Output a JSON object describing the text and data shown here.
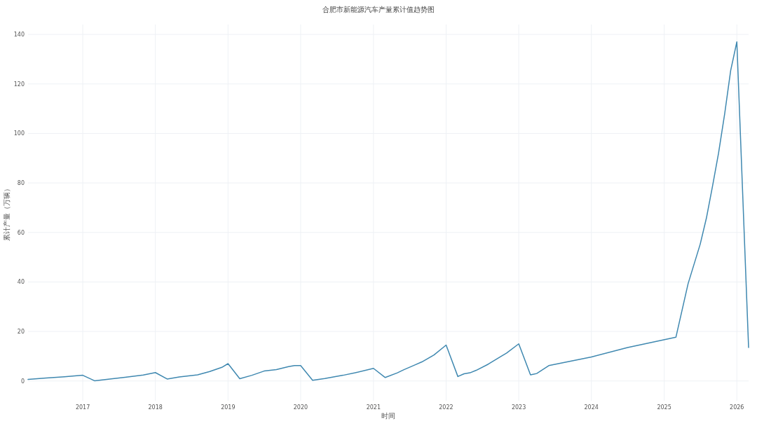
{
  "chart_data": {
    "type": "line",
    "title": "合肥市新能源汽车产量累计值趋势图",
    "xlabel": "时间",
    "ylabel": "累计产量（万辆）",
    "x": [
      "2016-04",
      "2016-07",
      "2016-10",
      "2017-01",
      "2017-03",
      "2017-05",
      "2017-08",
      "2017-11",
      "2018-01",
      "2018-03",
      "2018-05",
      "2018-08",
      "2018-10",
      "2018-12",
      "2019-01",
      "2019-03",
      "2019-05",
      "2019-07",
      "2019-09",
      "2019-11",
      "2019-12",
      "2020-01",
      "2020-03",
      "2020-05",
      "2020-08",
      "2020-10",
      "2021-01",
      "2021-03",
      "2021-05",
      "2021-06",
      "2021-08",
      "2021-09",
      "2021-11",
      "2022-01",
      "2022-03",
      "2022-04",
      "2022-05",
      "2022-06",
      "2022-08",
      "2022-10",
      "2022-11",
      "2023-01",
      "2023-03",
      "2023-04",
      "2023-06",
      "2024-01",
      "2024-07",
      "2025-03",
      "2025-05",
      "2025-07",
      "2025-08",
      "2025-09",
      "2025-10",
      "2025-11",
      "2025-12",
      "2026-01",
      "2026-03"
    ],
    "series": [
      {
        "color": "#3f88b0",
        "values": [
          0.6,
          1.2,
          1.7,
          2.3,
          0.1,
          0.6,
          1.5,
          2.4,
          3.4,
          0.8,
          1.6,
          2.5,
          3.8,
          5.5,
          7.0,
          0.9,
          2.3,
          4.0,
          4.6,
          5.8,
          6.2,
          6.2,
          0.3,
          1.0,
          2.3,
          3.3,
          5.1,
          1.4,
          3.3,
          4.5,
          6.6,
          7.7,
          10.5,
          14.5,
          1.8,
          2.9,
          3.3,
          4.3,
          6.8,
          9.8,
          11.3,
          15.0,
          2.5,
          3.0,
          6.2,
          9.7,
          13.5,
          17.7,
          39.3,
          55.3,
          65.8,
          78.8,
          92,
          108,
          125.4,
          137,
          13.5
        ]
      }
    ],
    "xlim": [
      "2016-04",
      "2026-03"
    ],
    "ylim": [
      -8,
      144
    ],
    "xticks": [
      "2017",
      "2018",
      "2019",
      "2020",
      "2021",
      "2022",
      "2023",
      "2024",
      "2025",
      "2026"
    ],
    "yticks": [
      0,
      20,
      40,
      60,
      80,
      100,
      120,
      140
    ],
    "grid": true
  }
}
